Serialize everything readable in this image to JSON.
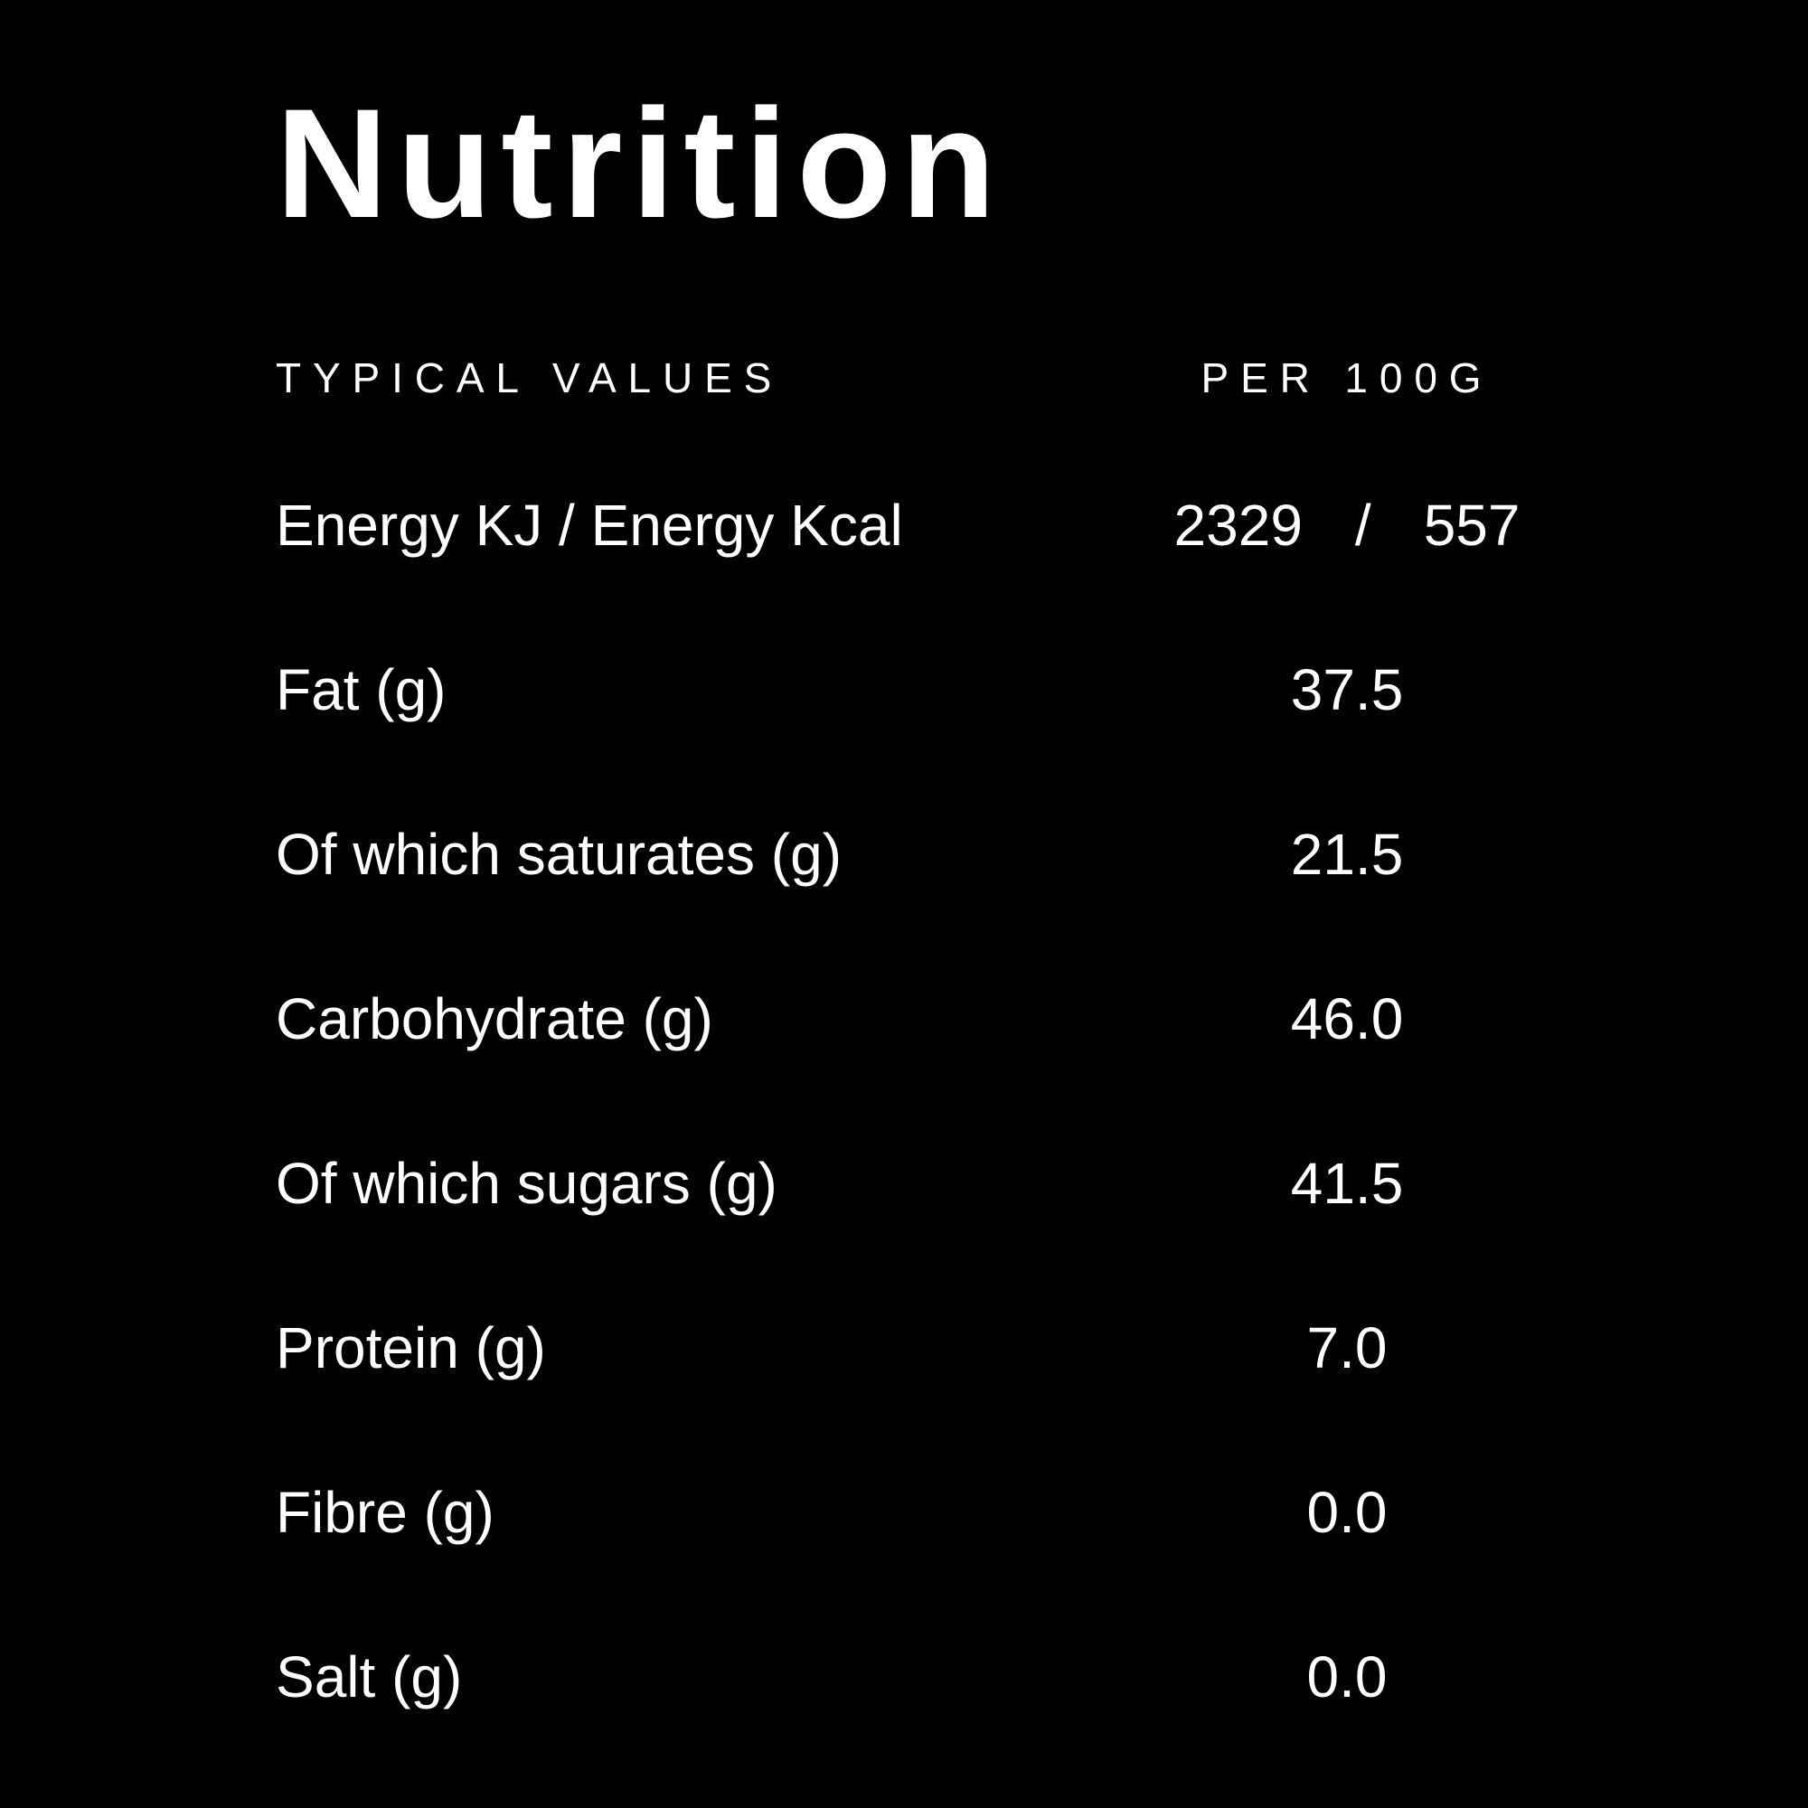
{
  "title": "Nutrition",
  "colors": {
    "background": "#000000",
    "text": "#ffffff"
  },
  "table": {
    "header": {
      "label": "TYPICAL VALUES",
      "value": "PER 100G"
    },
    "rows": [
      {
        "label": "Energy KJ / Energy Kcal",
        "value_parts": [
          "2329",
          "/",
          "557"
        ]
      },
      {
        "label": "Fat (g)",
        "value": "37.5"
      },
      {
        "label": "Of which saturates (g)",
        "value": "21.5"
      },
      {
        "label": "Carbohydrate (g)",
        "value": "46.0"
      },
      {
        "label": "Of which sugars (g)",
        "value": "41.5"
      },
      {
        "label": "Protein (g)",
        "value": "7.0"
      },
      {
        "label": "Fibre (g)",
        "value": "0.0"
      },
      {
        "label": "Salt (g)",
        "value": "0.0"
      }
    ]
  }
}
